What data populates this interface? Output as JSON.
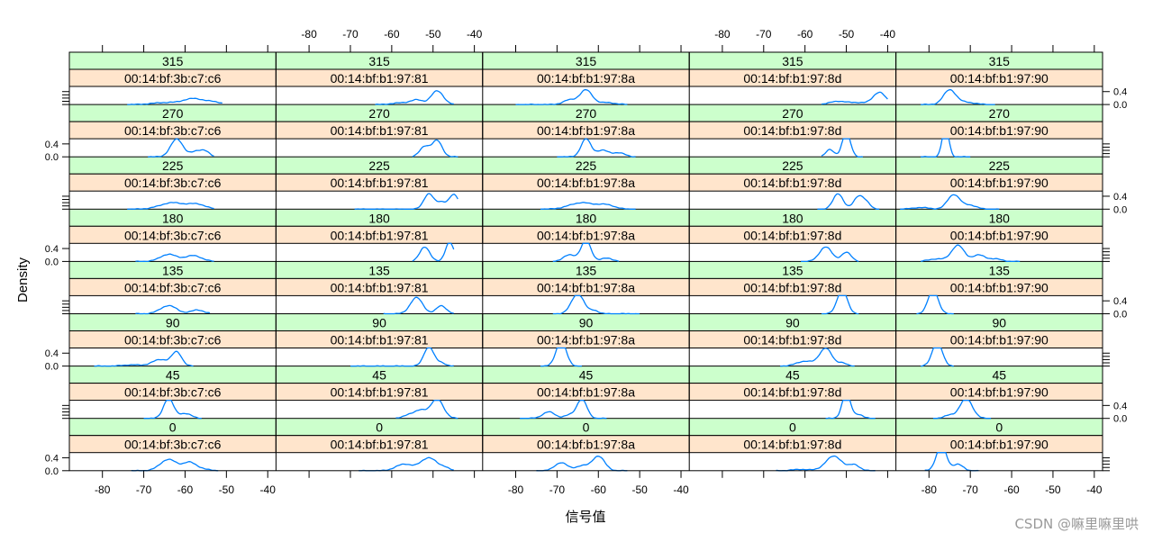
{
  "chart_data": {
    "type": "line",
    "xlabel": "信号值",
    "ylabel": "Density",
    "xlim": [
      -88,
      -38
    ],
    "ylim": [
      0,
      0.4
    ],
    "x_ticks": [
      -80,
      -70,
      -60,
      -50,
      -40
    ],
    "y_ticks": [
      0.0,
      0.4
    ],
    "x_tick_labels": [
      "-80",
      "-70",
      "-60",
      "-50",
      "-40"
    ],
    "y_tick_labels": [
      "0.0",
      "0.4"
    ],
    "columns": [
      "00:14:bf:3b:c7:c6",
      "00:14:bf:b1:97:81",
      "00:14:bf:b1:97:8a",
      "00:14:bf:b1:97:8d",
      "00:14:bf:b1:97:90"
    ],
    "rows": [
      "315",
      "270",
      "225",
      "180",
      "135",
      "90",
      "45",
      "0"
    ],
    "colors": {
      "line": "#0080ff",
      "strip_top": "#ccffcc",
      "strip_bottom": "#ffe5cc"
    },
    "panels": [
      {
        "row": "315",
        "col": "00:14:bf:3b:c7:c6",
        "range": [
          -74,
          -51
        ],
        "peaks": [
          [
            -58,
            0.18,
            2.5
          ],
          [
            -65,
            0.06,
            3
          ],
          [
            -53,
            0.07,
            2
          ]
        ]
      },
      {
        "row": "315",
        "col": "00:14:bf:b1:97:81",
        "range": [
          -64,
          -45
        ],
        "peaks": [
          [
            -49,
            0.42,
            1.5
          ],
          [
            -54,
            0.14,
            1.5
          ],
          [
            -58,
            0.05,
            2
          ]
        ]
      },
      {
        "row": "315",
        "col": "00:14:bf:b1:97:8a",
        "range": [
          -80,
          -53
        ],
        "peaks": [
          [
            -63,
            0.45,
            1.5
          ],
          [
            -67,
            0.14,
            1.5
          ],
          [
            -58,
            0.06,
            2
          ]
        ]
      },
      {
        "row": "315",
        "col": "00:14:bf:b1:97:8d",
        "range": [
          -56,
          -40
        ],
        "peaks": [
          [
            -42,
            0.38,
            1.5
          ],
          [
            -52,
            0.1,
            2
          ],
          [
            -47,
            0.06,
            2
          ]
        ]
      },
      {
        "row": "315",
        "col": "00:14:bf:b1:97:90",
        "range": [
          -82,
          -64
        ],
        "peaks": [
          [
            -75,
            0.45,
            1.5
          ],
          [
            -71,
            0.07,
            2
          ]
        ]
      },
      {
        "row": "270",
        "col": "00:14:bf:3b:c7:c6",
        "range": [
          -69,
          -53
        ],
        "peaks": [
          [
            -62,
            0.55,
            1.5
          ],
          [
            -57,
            0.18,
            1.5
          ],
          [
            -55,
            0.12,
            1
          ]
        ]
      },
      {
        "row": "270",
        "col": "00:14:bf:b1:97:81",
        "range": [
          -55,
          -44
        ],
        "peaks": [
          [
            -49,
            0.5,
            1.2
          ],
          [
            -52,
            0.32,
            1.2
          ]
        ]
      },
      {
        "row": "270",
        "col": "00:14:bf:b1:97:8a",
        "range": [
          -70,
          -51
        ],
        "peaks": [
          [
            -63,
            0.55,
            1.2
          ],
          [
            -59,
            0.2,
            1.5
          ],
          [
            -55,
            0.12,
            1.5
          ]
        ]
      },
      {
        "row": "270",
        "col": "00:14:bf:b1:97:8d",
        "range": [
          -56,
          -46
        ],
        "peaks": [
          [
            -50,
            0.75,
            1
          ],
          [
            -54,
            0.22,
            1
          ]
        ]
      },
      {
        "row": "270",
        "col": "00:14:bf:b1:97:90",
        "range": [
          -82,
          -70
        ],
        "peaks": [
          [
            -76,
            0.95,
            0.8
          ]
        ]
      },
      {
        "row": "225",
        "col": "00:14:bf:3b:c7:c6",
        "range": [
          -74,
          -53
        ],
        "peaks": [
          [
            -63,
            0.2,
            3
          ],
          [
            -57,
            0.14,
            2
          ]
        ]
      },
      {
        "row": "225",
        "col": "00:14:bf:b1:97:81",
        "range": [
          -69,
          -44
        ],
        "peaks": [
          [
            -51,
            0.48,
            1.2
          ],
          [
            -45,
            0.45,
            1.2
          ],
          [
            -48,
            0.2,
            1
          ]
        ]
      },
      {
        "row": "225",
        "col": "00:14:bf:b1:97:8a",
        "range": [
          -74,
          -51
        ],
        "peaks": [
          [
            -64,
            0.2,
            3
          ],
          [
            -58,
            0.12,
            2
          ]
        ]
      },
      {
        "row": "225",
        "col": "00:14:bf:b1:97:8d",
        "range": [
          -57,
          -42
        ],
        "peaks": [
          [
            -52,
            0.48,
            1.2
          ],
          [
            -47,
            0.4,
            1.2
          ],
          [
            -45,
            0.15,
            1
          ]
        ]
      },
      {
        "row": "225",
        "col": "00:14:bf:b1:97:90",
        "range": [
          -87,
          -63
        ],
        "peaks": [
          [
            -74,
            0.45,
            1.5
          ],
          [
            -70,
            0.12,
            1.5
          ],
          [
            -82,
            0.05,
            2
          ]
        ]
      },
      {
        "row": "180",
        "col": "00:14:bf:3b:c7:c6",
        "range": [
          -72,
          -53
        ],
        "peaks": [
          [
            -64,
            0.22,
            2
          ],
          [
            -58,
            0.18,
            2
          ]
        ]
      },
      {
        "row": "180",
        "col": "00:14:bf:b1:97:81",
        "range": [
          -55,
          -45
        ],
        "peaks": [
          [
            -46,
            0.6,
            1
          ],
          [
            -52,
            0.45,
            1.2
          ]
        ]
      },
      {
        "row": "180",
        "col": "00:14:bf:b1:97:8a",
        "range": [
          -71,
          -55
        ],
        "peaks": [
          [
            -63,
            0.65,
            1.2
          ],
          [
            -67,
            0.2,
            1.5
          ],
          [
            -58,
            0.1,
            1.5
          ]
        ]
      },
      {
        "row": "180",
        "col": "00:14:bf:b1:97:8d",
        "range": [
          -61,
          -47
        ],
        "peaks": [
          [
            -55,
            0.45,
            1.5
          ],
          [
            -50,
            0.28,
            1.2
          ]
        ]
      },
      {
        "row": "180",
        "col": "00:14:bf:b1:97:90",
        "range": [
          -82,
          -58
        ],
        "peaks": [
          [
            -73,
            0.5,
            1.5
          ],
          [
            -68,
            0.2,
            1.5
          ],
          [
            -64,
            0.08,
            1.5
          ],
          [
            -78,
            0.08,
            2
          ]
        ]
      },
      {
        "row": "135",
        "col": "00:14:bf:3b:c7:c6",
        "range": [
          -72,
          -54
        ],
        "peaks": [
          [
            -64,
            0.25,
            2
          ],
          [
            -57,
            0.12,
            1.5
          ]
        ]
      },
      {
        "row": "135",
        "col": "00:14:bf:b1:97:81",
        "range": [
          -62,
          -45
        ],
        "peaks": [
          [
            -54,
            0.5,
            1.5
          ],
          [
            -48,
            0.25,
            1.2
          ]
        ]
      },
      {
        "row": "135",
        "col": "00:14:bf:b1:97:8a",
        "range": [
          -71,
          -50
        ],
        "peaks": [
          [
            -65,
            0.62,
            1.5
          ],
          [
            -61,
            0.1,
            1
          ]
        ]
      },
      {
        "row": "135",
        "col": "00:14:bf:b1:97:8d",
        "range": [
          -56,
          -47
        ],
        "peaks": [
          [
            -51,
            0.75,
            1.2
          ]
        ]
      },
      {
        "row": "135",
        "col": "00:14:bf:b1:97:90",
        "range": [
          -83,
          -74
        ],
        "peaks": [
          [
            -79,
            0.75,
            1.2
          ]
        ]
      },
      {
        "row": "90",
        "col": "00:14:bf:3b:c7:c6",
        "range": [
          -82,
          -58
        ],
        "peaks": [
          [
            -66,
            0.2,
            2
          ],
          [
            -62,
            0.42,
            1.2
          ],
          [
            -73,
            0.04,
            2
          ]
        ]
      },
      {
        "row": "90",
        "col": "00:14:bf:b1:97:81",
        "range": [
          -70,
          -45
        ],
        "peaks": [
          [
            -51,
            0.6,
            1.2
          ],
          [
            -48,
            0.1,
            1
          ]
        ]
      },
      {
        "row": "90",
        "col": "00:14:bf:b1:97:8a",
        "range": [
          -74,
          -64
        ],
        "peaks": [
          [
            -69,
            0.8,
            1.2
          ]
        ]
      },
      {
        "row": "90",
        "col": "00:14:bf:b1:97:8d",
        "range": [
          -66,
          -48
        ],
        "peaks": [
          [
            -55,
            0.55,
            1.5
          ],
          [
            -60,
            0.15,
            2
          ],
          [
            -51,
            0.1,
            1
          ]
        ]
      },
      {
        "row": "90",
        "col": "00:14:bf:b1:97:90",
        "range": [
          -82,
          -74
        ],
        "peaks": [
          [
            -78,
            0.75,
            1.2
          ]
        ]
      },
      {
        "row": "45",
        "col": "00:14:bf:3b:c7:c6",
        "range": [
          -70,
          -56
        ],
        "peaks": [
          [
            -64,
            0.62,
            1.2
          ],
          [
            -60,
            0.15,
            1.5
          ]
        ]
      },
      {
        "row": "45",
        "col": "00:14:bf:b1:97:81",
        "range": [
          -59,
          -44
        ],
        "peaks": [
          [
            -49,
            0.6,
            1.5
          ],
          [
            -53,
            0.25,
            1.5
          ],
          [
            -56,
            0.1,
            1.2
          ]
        ]
      },
      {
        "row": "45",
        "col": "00:14:bf:b1:97:8a",
        "range": [
          -79,
          -58
        ],
        "peaks": [
          [
            -64,
            0.6,
            1.2
          ],
          [
            -72,
            0.2,
            1.5
          ],
          [
            -67,
            0.1,
            1.2
          ]
        ]
      },
      {
        "row": "45",
        "col": "00:14:bf:b1:97:8d",
        "range": [
          -55,
          -43
        ],
        "peaks": [
          [
            -50,
            0.8,
            1
          ],
          [
            -47,
            0.12,
            1
          ]
        ]
      },
      {
        "row": "45",
        "col": "00:14:bf:b1:97:90",
        "range": [
          -79,
          -65
        ],
        "peaks": [
          [
            -71,
            0.62,
            1.5
          ],
          [
            -75,
            0.1,
            1.2
          ]
        ]
      },
      {
        "row": "0",
        "col": "00:14:bf:3b:c7:c6",
        "range": [
          -73,
          -52
        ],
        "peaks": [
          [
            -64,
            0.35,
            2
          ],
          [
            -59,
            0.25,
            1.5
          ],
          [
            -56,
            0.06,
            1.5
          ]
        ]
      },
      {
        "row": "0",
        "col": "00:14:bf:b1:97:81",
        "range": [
          -68,
          -45
        ],
        "peaks": [
          [
            -51,
            0.4,
            2
          ],
          [
            -57,
            0.2,
            2
          ],
          [
            -47,
            0.08,
            1
          ]
        ]
      },
      {
        "row": "0",
        "col": "00:14:bf:b1:97:8a",
        "range": [
          -75,
          -53
        ],
        "peaks": [
          [
            -60,
            0.45,
            1.5
          ],
          [
            -69,
            0.25,
            1.5
          ],
          [
            -64,
            0.15,
            1.5
          ]
        ]
      },
      {
        "row": "0",
        "col": "00:14:bf:b1:97:8d",
        "range": [
          -67,
          -43
        ],
        "peaks": [
          [
            -53,
            0.45,
            2
          ],
          [
            -48,
            0.18,
            1.2
          ],
          [
            -61,
            0.04,
            2
          ]
        ]
      },
      {
        "row": "0",
        "col": "00:14:bf:b1:97:90",
        "range": [
          -81,
          -68
        ],
        "peaks": [
          [
            -77,
            0.8,
            1.2
          ],
          [
            -73,
            0.2,
            1.2
          ]
        ]
      }
    ]
  },
  "watermark": "CSDN @嘛里嘛里哄"
}
